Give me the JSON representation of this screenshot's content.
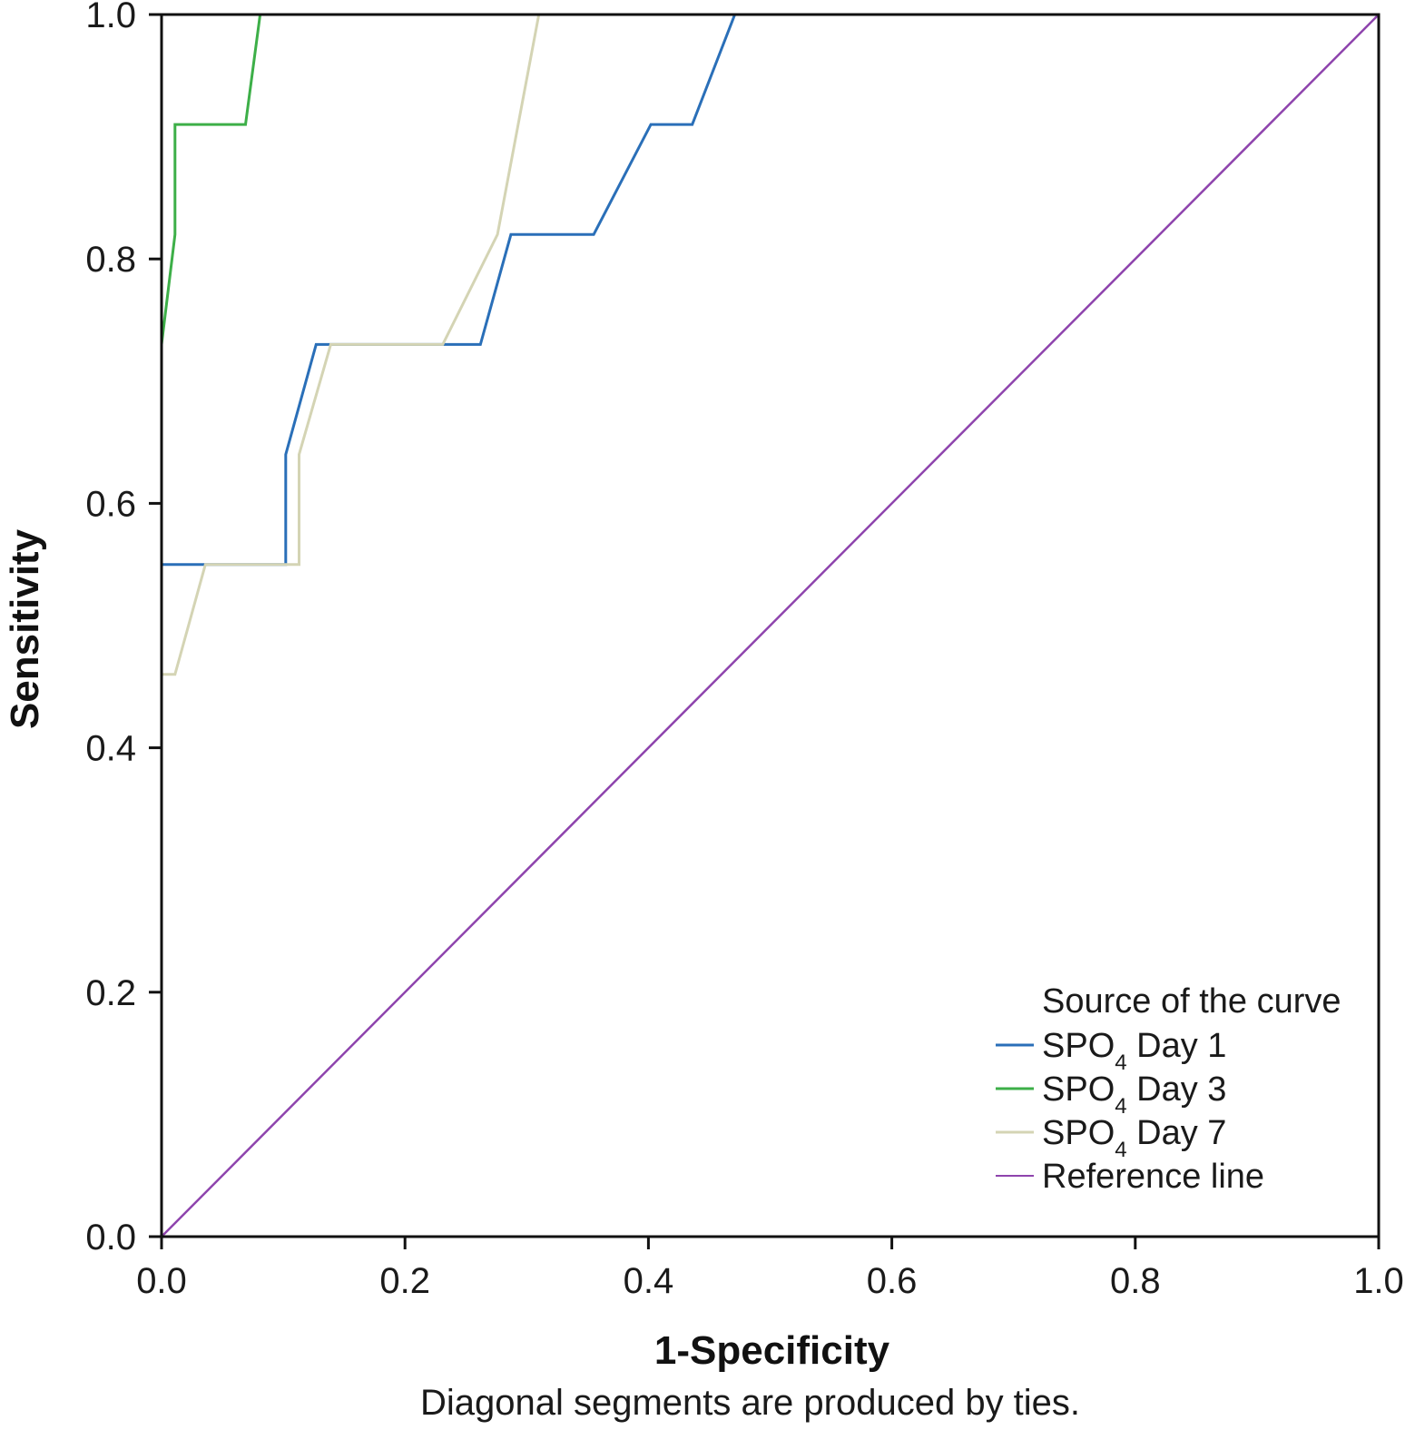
{
  "chart_data": {
    "type": "line",
    "xlabel": "1-Specificity",
    "ylabel": "Sensitivity",
    "note": "Diagonal segments are produced by ties.",
    "xlim": [
      0,
      1
    ],
    "ylim": [
      0,
      1
    ],
    "grid": false,
    "x_ticks": [
      "0.0",
      "0.2",
      "0.4",
      "0.6",
      "0.8",
      "1.0"
    ],
    "y_ticks": [
      "0.0",
      "0.2",
      "0.4",
      "0.6",
      "0.8",
      "1.0"
    ],
    "legend": {
      "title": "Source of the curve",
      "placement": "bottom-right"
    },
    "series": [
      {
        "name": "SPO4 Day 1",
        "label_main": "SPO",
        "label_sub": "4",
        "label_suffix": " Day 1",
        "color": "#2a6fb8",
        "x": [
          0.0,
          0.0,
          0.102,
          0.102,
          0.127,
          0.262,
          0.287,
          0.355,
          0.402,
          0.436,
          0.471,
          1.0
        ],
        "y": [
          0.0,
          0.55,
          0.55,
          0.64,
          0.73,
          0.73,
          0.82,
          0.82,
          0.91,
          0.91,
          1.0,
          1.0
        ]
      },
      {
        "name": "SPO4 Day 3",
        "label_main": "SPO",
        "label_sub": "4",
        "label_suffix": " Day 3",
        "color": "#3daf48",
        "x": [
          0.0,
          0.0,
          0.011,
          0.011,
          0.069,
          0.081,
          1.0
        ],
        "y": [
          0.0,
          0.73,
          0.82,
          0.91,
          0.91,
          1.0,
          1.0
        ]
      },
      {
        "name": "SPO4 Day 7",
        "label_main": "SPO",
        "label_sub": "4",
        "label_suffix": " Day 7",
        "color": "#d4d4b4",
        "x": [
          0.0,
          0.0,
          0.011,
          0.036,
          0.113,
          0.113,
          0.139,
          0.231,
          0.276,
          0.31,
          1.0
        ],
        "y": [
          0.0,
          0.46,
          0.46,
          0.55,
          0.55,
          0.64,
          0.73,
          0.73,
          0.82,
          1.0,
          1.0
        ]
      },
      {
        "name": "Reference line",
        "label_main": "Reference line",
        "label_sub": "",
        "label_suffix": "",
        "color": "#8e44ad",
        "x": [
          0.0,
          1.0
        ],
        "y": [
          0.0,
          1.0
        ]
      }
    ]
  }
}
